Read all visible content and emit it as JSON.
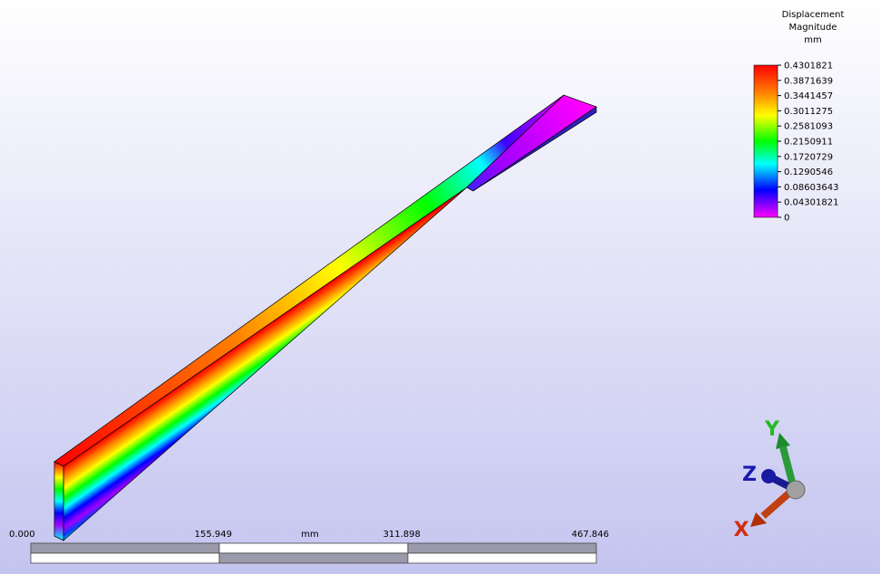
{
  "legend": {
    "title": [
      "Displacement",
      "Magnitude",
      "mm"
    ],
    "labels": [
      "0.4301821",
      "0.3871639",
      "0.3441457",
      "0.3011275",
      "0.2581093",
      "0.2150911",
      "0.1720729",
      "0.1290546",
      "0.08603643",
      "0.04301821",
      "0"
    ]
  },
  "scale_bar": {
    "labels": [
      "0.000",
      "155.949",
      "mm",
      "311.898",
      "467.846"
    ]
  },
  "triad": {
    "labels": [
      "Y",
      "Z",
      "X"
    ]
  }
}
